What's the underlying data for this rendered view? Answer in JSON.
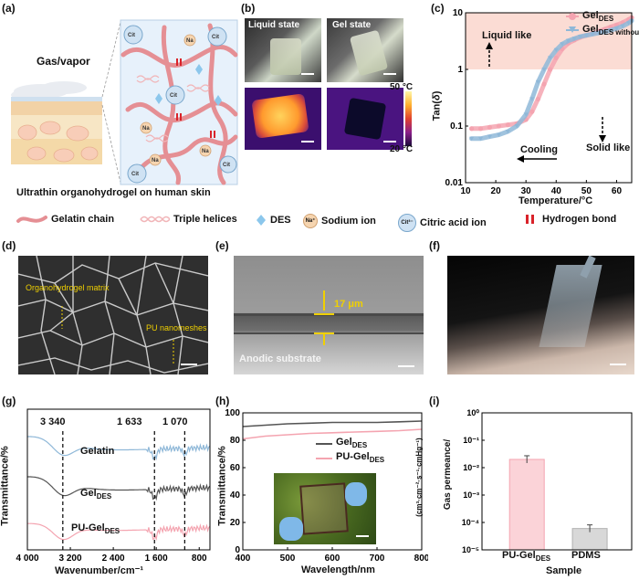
{
  "panels": {
    "a": {
      "label": "(a)",
      "gas_text": "Gas/vapor",
      "caption": "Ultrathin organohydrogel on human skin",
      "ions": {
        "na": "Na⁺",
        "cit": "Cit³⁻"
      }
    },
    "b": {
      "label": "(b)",
      "liquid": "Liquid state",
      "gel": "Gel state",
      "temp_high": "50 °C",
      "temp_low": "20 °C"
    },
    "c": {
      "label": "(c)",
      "liquid_like": "Liquid like",
      "solid_like": "Solid like",
      "cooling": "Cooling",
      "legend1_main": "Gel",
      "legend1_sub": "DES",
      "legend2_main": "Gel",
      "legend2_sub": "DES without SC"
    },
    "d": {
      "label": "(d)",
      "ann1": "Organohydrogel matrix",
      "ann2": "PU nanomeshes"
    },
    "e": {
      "label": "(e)",
      "thickness": "17 μm",
      "substrate": "Anodic substrate"
    },
    "f": {
      "label": "(f)"
    },
    "g": {
      "label": "(g)",
      "peak1": "3 340",
      "peak2": "1 633",
      "peak3": "1 070",
      "s1": "Gelatin",
      "s2_main": "Gel",
      "s2_sub": "DES",
      "s3_main": "PU-Gel",
      "s3_sub": "DES"
    },
    "h": {
      "label": "(h)",
      "l1_main": "Gel",
      "l1_sub": "DES",
      "l2_main": "PU-Gel",
      "l2_sub": "DES"
    },
    "i": {
      "label": "(i)"
    }
  },
  "legend": {
    "gelatin": "Gelatin chain",
    "triple": "Triple helices",
    "des": "DES",
    "na_icon": "Na⁺",
    "sodium": "Sodium ion",
    "cit_icon": "Cit³⁻",
    "citric": "Citric acid ion",
    "hbond": "Hydrogen bond"
  },
  "colors": {
    "pink": "#f4a4b0",
    "blue": "#8fb8d8",
    "gray": "#555555",
    "bar_pink": "#fbd3d8",
    "bar_gray": "#d8d8d8",
    "shade": "#fbdcd4"
  },
  "chart_data": [
    {
      "panel": "c",
      "type": "scatter",
      "xlabel": "Temperature/°C",
      "ylabel_main": "Tan(",
      "ylabel_delta": "δ",
      "ylabel_end": ")",
      "x_ticks": [
        "10",
        "20",
        "30",
        "40",
        "50",
        "60"
      ],
      "y_ticks": [
        "0.01",
        "0.1",
        "1",
        "10"
      ],
      "xlim": [
        10,
        65
      ],
      "ylim": [
        0.01,
        10
      ],
      "yscale": "log",
      "series": [
        {
          "name": "GelDES",
          "color": "#f4a4b0",
          "x": [
            12,
            15,
            18,
            21,
            24,
            27,
            30,
            32,
            34,
            36,
            38,
            40,
            42,
            44,
            46,
            48,
            50,
            52,
            54,
            56,
            58,
            60,
            62,
            64,
            65
          ],
          "y": [
            0.09,
            0.09,
            0.095,
            0.1,
            0.105,
            0.11,
            0.13,
            0.18,
            0.3,
            0.55,
            1.0,
            1.6,
            2.3,
            2.9,
            3.3,
            3.7,
            4.0,
            4.3,
            4.7,
            5.1,
            5.6,
            6.1,
            6.7,
            7.6,
            8.2
          ]
        },
        {
          "name": "GelDES without SC",
          "color": "#8fb8d8",
          "x": [
            12,
            15,
            18,
            21,
            24,
            27,
            30,
            32,
            34,
            36,
            38,
            40,
            42,
            44,
            46,
            48,
            50,
            52,
            54,
            56,
            58,
            60,
            62,
            64,
            65
          ],
          "y": [
            0.06,
            0.06,
            0.065,
            0.07,
            0.08,
            0.1,
            0.16,
            0.3,
            0.6,
            1.0,
            1.6,
            2.2,
            2.8,
            3.2,
            3.5,
            3.8,
            4.0,
            4.2,
            4.4,
            4.6,
            4.9,
            5.3,
            5.8,
            6.6,
            7.2
          ]
        }
      ]
    },
    {
      "panel": "g",
      "type": "line",
      "xlabel": "Wavenumber/cm⁻¹",
      "ylabel": "Transmittance/%",
      "x_ticks": [
        "4 000",
        "3 200",
        "2 400",
        "1 600",
        "800"
      ],
      "xlim": [
        4000,
        600
      ],
      "x_reversed": true,
      "series": [
        {
          "name": "Gelatin",
          "color": "#8fb8d8"
        },
        {
          "name": "GelDES",
          "color": "#555555"
        },
        {
          "name": "PU-GelDES",
          "color": "#f4a4b0"
        }
      ],
      "peaks": [
        3340,
        1633,
        1070
      ]
    },
    {
      "panel": "h",
      "type": "line",
      "xlabel": "Wavelength/nm",
      "ylabel": "Transmittance/%",
      "x_ticks": [
        "400",
        "500",
        "600",
        "700",
        "800"
      ],
      "y_ticks": [
        "0",
        "20",
        "40",
        "60",
        "80",
        "100"
      ],
      "xlim": [
        400,
        800
      ],
      "ylim": [
        0,
        100
      ],
      "series": [
        {
          "name": "GelDES",
          "color": "#555555",
          "x": [
            400,
            450,
            500,
            550,
            600,
            650,
            700,
            750,
            800
          ],
          "y": [
            90,
            91,
            92,
            92.5,
            93,
            93,
            93,
            93.5,
            94
          ]
        },
        {
          "name": "PU-GelDES",
          "color": "#f4a4b0",
          "x": [
            400,
            450,
            500,
            550,
            600,
            650,
            700,
            750,
            800
          ],
          "y": [
            81,
            83,
            84,
            85,
            85.5,
            86,
            86.5,
            87,
            88
          ]
        }
      ]
    },
    {
      "panel": "i",
      "type": "bar",
      "xlabel": "Sample",
      "ylabel_top": "Gas permeance/",
      "ylabel_bottom": "(cm³·cm⁻²·s⁻¹·cmHg⁻¹)",
      "categories": [
        "PU-GelDES",
        "PDMS"
      ],
      "values": [
        0.02,
        6e-05
      ],
      "y_ticks": [
        "10⁻⁵",
        "10⁻⁴",
        "10⁻³",
        "10⁻²",
        "10⁻¹",
        "10⁰"
      ],
      "ylim": [
        1e-05,
        1
      ],
      "yscale": "log",
      "cat1_main": "PU-Gel",
      "cat1_sub": "DES",
      "cat2": "PDMS"
    }
  ]
}
